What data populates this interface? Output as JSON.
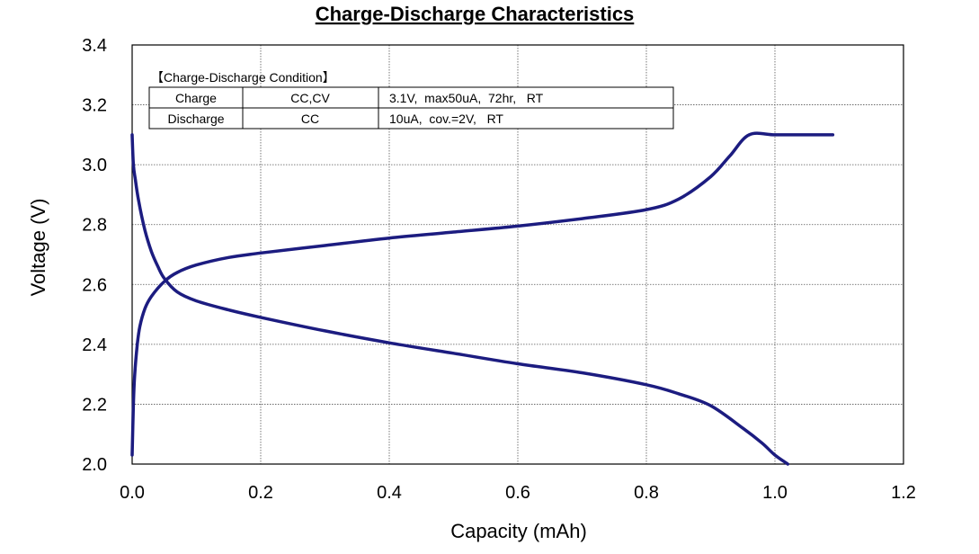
{
  "chart_data": {
    "type": "line",
    "title": "Charge-Discharge Characteristics",
    "xlabel": "Capacity (mAh)",
    "ylabel": "Voltage (V)",
    "xlim": [
      0.0,
      1.2
    ],
    "ylim": [
      2.0,
      3.4
    ],
    "x_ticks": [
      "0.0",
      "0.2",
      "0.4",
      "0.6",
      "0.8",
      "1.0",
      "1.2"
    ],
    "y_ticks": [
      "2.0",
      "2.2",
      "2.4",
      "2.6",
      "2.8",
      "3.0",
      "3.2",
      "3.4"
    ],
    "x_tick_values": [
      0.0,
      0.2,
      0.4,
      0.6,
      0.8,
      1.0,
      1.2
    ],
    "y_tick_values": [
      2.0,
      2.2,
      2.4,
      2.6,
      2.8,
      3.0,
      3.2,
      3.4
    ],
    "grid": true,
    "line_color": "#1c1c80",
    "series": [
      {
        "x": [
          0.0,
          0.002,
          0.004,
          0.008,
          0.012,
          0.02,
          0.03,
          0.05,
          0.07,
          0.1,
          0.15,
          0.2,
          0.3,
          0.4,
          0.5,
          0.6,
          0.7,
          0.8,
          0.85,
          0.9,
          0.93,
          0.96,
          1.0,
          1.05,
          1.09
        ],
        "y": [
          2.03,
          2.2,
          2.3,
          2.4,
          2.46,
          2.52,
          2.56,
          2.61,
          2.64,
          2.665,
          2.69,
          2.705,
          2.73,
          2.755,
          2.775,
          2.795,
          2.82,
          2.85,
          2.885,
          2.96,
          3.03,
          3.1,
          3.1,
          3.1,
          3.1
        ]
      },
      {
        "x": [
          0.0,
          0.002,
          0.005,
          0.01,
          0.02,
          0.03,
          0.04,
          0.05,
          0.07,
          0.1,
          0.15,
          0.2,
          0.3,
          0.4,
          0.5,
          0.6,
          0.7,
          0.8,
          0.85,
          0.9,
          0.95,
          0.98,
          1.0,
          1.02
        ],
        "y": [
          3.1,
          3.0,
          2.95,
          2.88,
          2.78,
          2.71,
          2.66,
          2.62,
          2.575,
          2.545,
          2.515,
          2.49,
          2.445,
          2.405,
          2.37,
          2.335,
          2.305,
          2.265,
          2.235,
          2.195,
          2.12,
          2.07,
          2.03,
          2.0
        ]
      }
    ]
  },
  "conditions": {
    "heading": "【Charge-Discharge Condition】",
    "rows": [
      {
        "type": "Charge",
        "mode": "CC,CV",
        "detail": "3.1V,  max50uA,  72hr,   RT"
      },
      {
        "type": "Discharge",
        "mode": "CC",
        "detail": "10uA,  cov.=2V,   RT"
      }
    ]
  }
}
